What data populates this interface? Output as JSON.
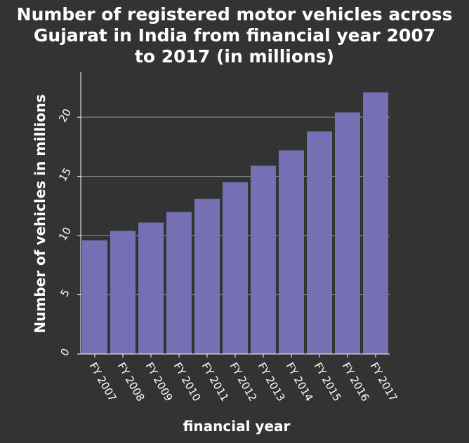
{
  "chart_data": {
    "type": "bar",
    "title_lines": [
      "Number of registered motor vehicles across",
      "Gujarat in India from financial year 2007",
      "to 2017 (in millions)"
    ],
    "xlabel": "financial year",
    "ylabel": "Number of vehicles in millions",
    "categories": [
      "FY 2007",
      "FY 2008",
      "FY 2009",
      "FY 2010",
      "FY 2011",
      "FY 2012",
      "FY 2013",
      "FY 2014",
      "FY 2015",
      "FY 2016",
      "FY 2017"
    ],
    "values": [
      9.6,
      10.4,
      11.1,
      12.0,
      13.1,
      14.5,
      15.9,
      17.2,
      18.8,
      20.4,
      22.1
    ],
    "ylim": [
      0,
      23.8
    ],
    "yticks": [
      0,
      5,
      10,
      15,
      20
    ],
    "grid": "horizontal",
    "legend": "none",
    "colors": {
      "background": "#333333",
      "plot_background": "#333333",
      "bar": "#7570b3",
      "grid": "#999999",
      "text": "#ffffff",
      "axis": "#ffffff"
    }
  }
}
